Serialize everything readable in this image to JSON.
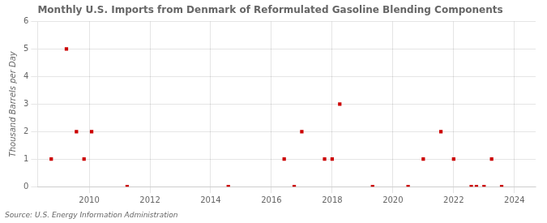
{
  "chart_data": {
    "type": "scatter",
    "title": "Monthly U.S. Imports from Denmark of Reformulated Gasoline Blending Components",
    "ylabel": "Thousand Barrels per Day",
    "annotation": "Source: U.S. Energy Information Administration",
    "x": [
      2008.75,
      2009.25,
      2009.58,
      2009.83,
      2010.08,
      2011.25,
      2014.58,
      2016.42,
      2016.75,
      2017.0,
      2017.75,
      2018.0,
      2018.25,
      2019.33,
      2020.5,
      2021.0,
      2021.58,
      2022.0,
      2022.58,
      2022.75,
      2023.0,
      2023.25,
      2023.58
    ],
    "values": [
      1,
      5,
      2,
      1,
      2,
      0,
      0,
      1,
      0,
      2,
      1,
      1,
      3,
      0,
      0,
      1,
      2,
      1,
      0,
      0,
      0,
      1,
      0
    ],
    "color": "#cc0000",
    "marker": "square",
    "xlim": [
      2008.3,
      2024.7
    ],
    "xticks": [
      2010,
      2012,
      2014,
      2016,
      2018,
      2020,
      2022,
      2024
    ],
    "ylim": [
      0,
      6
    ],
    "yticks": [
      0,
      1,
      2,
      3,
      4,
      5,
      6
    ],
    "grid": true
  }
}
